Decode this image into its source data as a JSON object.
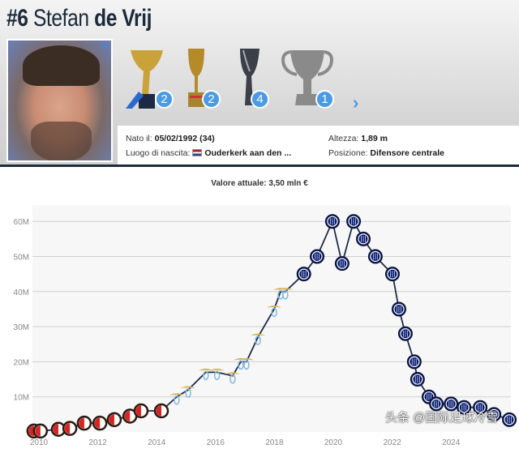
{
  "header": {
    "number": "#6",
    "first_name": "Stefan",
    "last_name": "de Vrij",
    "trophies": [
      {
        "name": "scudetto-trophy",
        "count": "2"
      },
      {
        "name": "coppa-italia-trophy",
        "count": "2"
      },
      {
        "name": "supercoppa-trophy",
        "count": "4"
      },
      {
        "name": "generic-trophy",
        "count": "1"
      }
    ],
    "info": {
      "born_label": "Nato il:",
      "born_value": "05/02/1992 (34)",
      "birthplace_label": "Luogo di nascita:",
      "birthplace_value": "Ouderkerk aan den ...",
      "height_label": "Altezza:",
      "height_value": "1,89 m",
      "position_label": "Posizione:",
      "position_value": "Difensore centrale"
    }
  },
  "watermark": "头条 @国际足球冷雪",
  "chart_data": {
    "type": "line",
    "title": "Valore attuale: 3,50 mln €",
    "xlabel": "",
    "ylabel": "",
    "xlim": [
      2009.8,
      2026.1
    ],
    "ylim": [
      0,
      65
    ],
    "x_ticks": [
      "2010",
      "2012",
      "2014",
      "2016",
      "2018",
      "2020",
      "2022",
      "2024"
    ],
    "y_ticks": [
      "10M",
      "20M",
      "30M",
      "40M",
      "50M",
      "60M"
    ],
    "grid": true,
    "colors": {
      "line": "#1d2b4a",
      "feyenoord": "#d8231f",
      "lazio": "#7fb8e0",
      "inter": "#0b1a5c",
      "plot_bg": "#f7f7f7",
      "grid": "#d0d0d0"
    },
    "series": [
      {
        "club": "feyenoord",
        "x": [
          2009.83,
          2010.05,
          2010.66,
          2011.05,
          2011.54,
          2012.07,
          2012.56,
          2013.09,
          2013.47,
          2014.16
        ],
        "values": [
          0.25,
          0.25,
          0.75,
          1,
          2.5,
          2.5,
          3.5,
          4.5,
          6,
          6
        ]
      },
      {
        "club": "lazio",
        "x": [
          2014.68,
          2015.07,
          2015.67,
          2016.05,
          2016.58,
          2016.86,
          2017.05,
          2017.44,
          2017.99,
          2018.21,
          2018.37
        ],
        "values": [
          10,
          12,
          17,
          17,
          16,
          20,
          20,
          27,
          35,
          40,
          40
        ]
      },
      {
        "club": "inter",
        "x": [
          2019.0,
          2019.45,
          2019.97,
          2020.3,
          2020.69,
          2021.02,
          2021.43,
          2022.01,
          2022.23,
          2022.45,
          2022.75,
          2022.86,
          2023.25,
          2023.5,
          2024.0,
          2024.44,
          2024.99,
          2025.46,
          2025.98
        ],
        "values": [
          45,
          50,
          60,
          48,
          60,
          55,
          50,
          45,
          35,
          28,
          20,
          15,
          10,
          8,
          8,
          7,
          7,
          5,
          3.5
        ]
      }
    ]
  }
}
